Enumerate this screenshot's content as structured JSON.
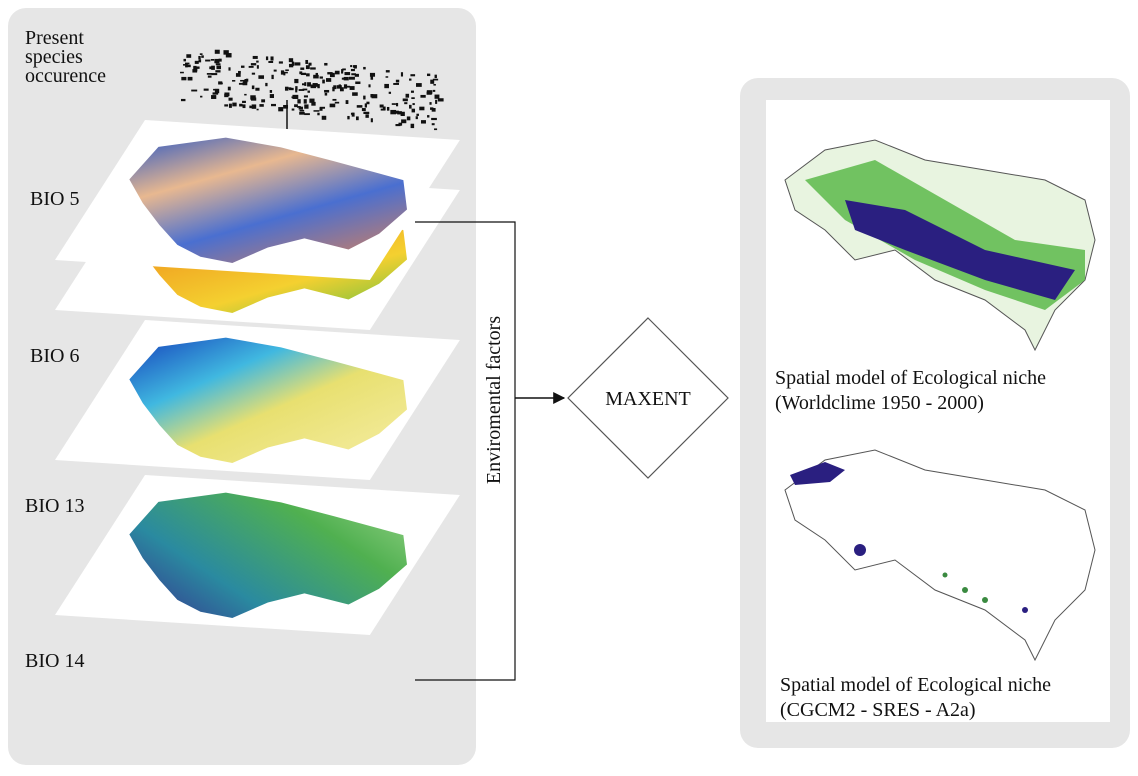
{
  "occurrence_label": [
    "Present",
    "species",
    "occurence"
  ],
  "layers": [
    {
      "label": "BIO 5"
    },
    {
      "label": "BIO 6"
    },
    {
      "label": "BIO 13"
    },
    {
      "label": "BIO 14"
    }
  ],
  "connector_label": "Enviromental factors",
  "model_label": "MAXENT",
  "outputs": [
    {
      "title": "Spatial model of Ecological niche",
      "subtitle": "(Worldclime 1950 - 2000)"
    },
    {
      "title": "Spatial model of Ecological niche",
      "subtitle": "(CGCM2 - SRES - A2a)"
    }
  ]
}
